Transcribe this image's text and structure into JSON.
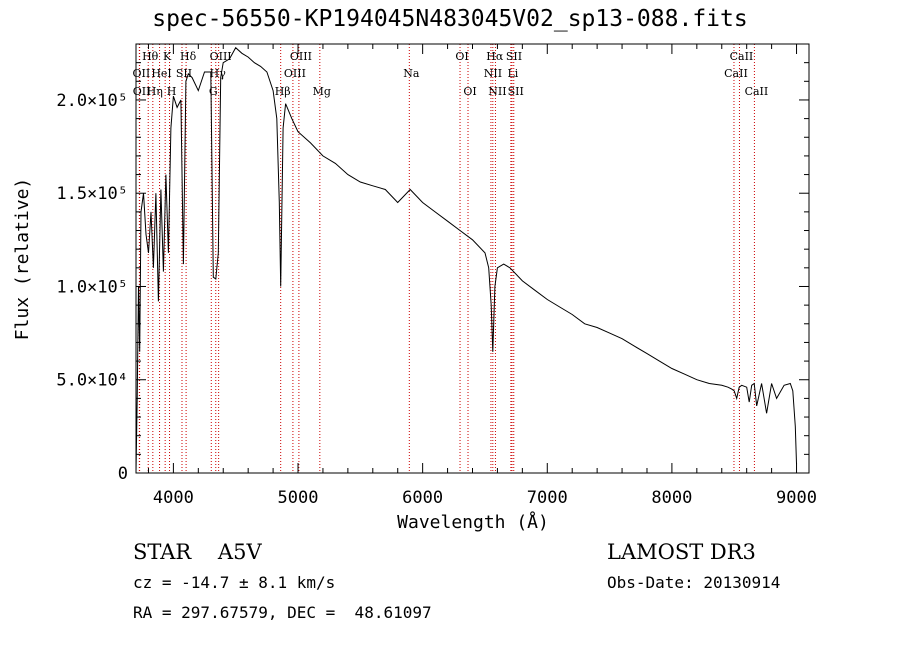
{
  "header": {
    "title": "spec-56550-KP194045N483045V02_sp13-088.fits"
  },
  "info": {
    "object_class": "STAR",
    "subclass": "A5V",
    "object_line": "STAR    A5V",
    "survey": "LAMOST DR3",
    "redshift": "cz = -14.7 ± 8.1 km/s",
    "obs_date": "Obs-Date: 20130914",
    "coordinates": "RA = 297.67579, DEC =  48.61097"
  },
  "colors": {
    "spectrum": "#000000",
    "line_marker": "#cc0000",
    "background": "#ffffff"
  },
  "chart_data": {
    "type": "line",
    "title": "spec-56550-KP194045N483045V02_sp13-088.fits",
    "xlabel": "Wavelength (Å)",
    "ylabel": "Flux (relative)",
    "xlim": [
      3700,
      9100
    ],
    "ylim": [
      0,
      230000
    ],
    "grid": false,
    "x_ticks": [
      {
        "value": 4000,
        "label": "4000"
      },
      {
        "value": 5000,
        "label": "5000"
      },
      {
        "value": 6000,
        "label": "6000"
      },
      {
        "value": 7000,
        "label": "7000"
      },
      {
        "value": 8000,
        "label": "8000"
      },
      {
        "value": 9000,
        "label": "9000"
      }
    ],
    "y_ticks": [
      {
        "value": 0,
        "label": "0"
      },
      {
        "value": 50000,
        "label": "5.0×10⁴"
      },
      {
        "value": 100000,
        "label": "1.0×10⁵"
      },
      {
        "value": 150000,
        "label": "1.5×10⁵"
      },
      {
        "value": 200000,
        "label": "2.0×10⁵"
      }
    ],
    "series": [
      {
        "name": "flux",
        "x": [
          3700,
          3710,
          3720,
          3730,
          3740,
          3760,
          3780,
          3800,
          3820,
          3840,
          3860,
          3880,
          3900,
          3920,
          3940,
          3960,
          3980,
          4000,
          4030,
          4060,
          4080,
          4100,
          4120,
          4150,
          4200,
          4250,
          4300,
          4320,
          4340,
          4360,
          4380,
          4400,
          4450,
          4500,
          4550,
          4600,
          4650,
          4700,
          4750,
          4800,
          4830,
          4850,
          4861,
          4880,
          4900,
          4950,
          5000,
          5100,
          5200,
          5300,
          5400,
          5500,
          5600,
          5700,
          5800,
          5900,
          6000,
          6100,
          6200,
          6300,
          6400,
          6500,
          6530,
          6550,
          6563,
          6580,
          6600,
          6650,
          6700,
          6800,
          6900,
          7000,
          7100,
          7200,
          7300,
          7400,
          7500,
          7600,
          7700,
          7800,
          7900,
          8000,
          8100,
          8200,
          8300,
          8400,
          8450,
          8480,
          8500,
          8520,
          8540,
          8560,
          8600,
          8620,
          8640,
          8660,
          8680,
          8720,
          8760,
          8800,
          8840,
          8900,
          8950,
          8970,
          8990,
          9000
        ],
        "y": [
          0,
          40000,
          100000,
          65000,
          140000,
          150000,
          128000,
          118000,
          140000,
          110000,
          150000,
          92000,
          152000,
          108000,
          160000,
          118000,
          185000,
          202000,
          196000,
          200000,
          112000,
          210000,
          214000,
          212000,
          205000,
          215000,
          215000,
          105000,
          104000,
          118000,
          212000,
          220000,
          222000,
          228000,
          225000,
          223000,
          220000,
          218000,
          215000,
          205000,
          190000,
          145000,
          100000,
          185000,
          198000,
          190000,
          183000,
          177000,
          170000,
          166000,
          160000,
          156000,
          154000,
          152000,
          145000,
          152000,
          145000,
          140000,
          135000,
          130000,
          125000,
          118000,
          110000,
          90000,
          65000,
          100000,
          110000,
          112000,
          110000,
          103000,
          98000,
          93000,
          89000,
          85000,
          80000,
          78000,
          75000,
          72000,
          68000,
          64000,
          60000,
          56000,
          53000,
          50000,
          48000,
          47000,
          46000,
          45000,
          44000,
          40000,
          46000,
          47000,
          46000,
          38000,
          47000,
          48000,
          36000,
          48000,
          32000,
          48000,
          40000,
          47000,
          48000,
          44000,
          25000,
          5000
        ]
      }
    ],
    "line_markers": [
      {
        "label": "Hθ",
        "x": 3798,
        "row": 0
      },
      {
        "label": "OII",
        "x": 3727,
        "row": 1
      },
      {
        "label": "OII",
        "x": 3729,
        "row": 2
      },
      {
        "label": "HeI",
        "x": 3889,
        "row": 1
      },
      {
        "label": "Hη",
        "x": 3835,
        "row": 2
      },
      {
        "label": "K",
        "x": 3934,
        "row": 0
      },
      {
        "label": "SII",
        "x": 4069,
        "row": 1
      },
      {
        "label": "H",
        "x": 3969,
        "row": 2
      },
      {
        "label": "Hδ",
        "x": 4102,
        "row": 0
      },
      {
        "label": "OIII",
        "x": 4363,
        "row": 0
      },
      {
        "label": "Hγ",
        "x": 4340,
        "row": 1
      },
      {
        "label": "G",
        "x": 4304,
        "row": 2
      },
      {
        "label": "OIII",
        "x": 5007,
        "row": 0
      },
      {
        "label": "OIII",
        "x": 4959,
        "row": 1
      },
      {
        "label": "Hβ",
        "x": 4861,
        "row": 2
      },
      {
        "label": "Mg",
        "x": 5175,
        "row": 2
      },
      {
        "label": "Na",
        "x": 5893,
        "row": 1
      },
      {
        "label": "OI",
        "x": 6300,
        "row": 0
      },
      {
        "label": "OI",
        "x": 6364,
        "row": 2
      },
      {
        "label": "Hα",
        "x": 6563,
        "row": 0
      },
      {
        "label": "NII",
        "x": 6548,
        "row": 1
      },
      {
        "label": "NII",
        "x": 6584,
        "row": 2
      },
      {
        "label": "SII",
        "x": 6717,
        "row": 0
      },
      {
        "label": "Li",
        "x": 6708,
        "row": 1
      },
      {
        "label": "SII",
        "x": 6731,
        "row": 2
      },
      {
        "label": "CaII",
        "x": 8542,
        "row": 0
      },
      {
        "label": "CaII",
        "x": 8498,
        "row": 1
      },
      {
        "label": "CaII",
        "x": 8662,
        "row": 2
      }
    ]
  }
}
